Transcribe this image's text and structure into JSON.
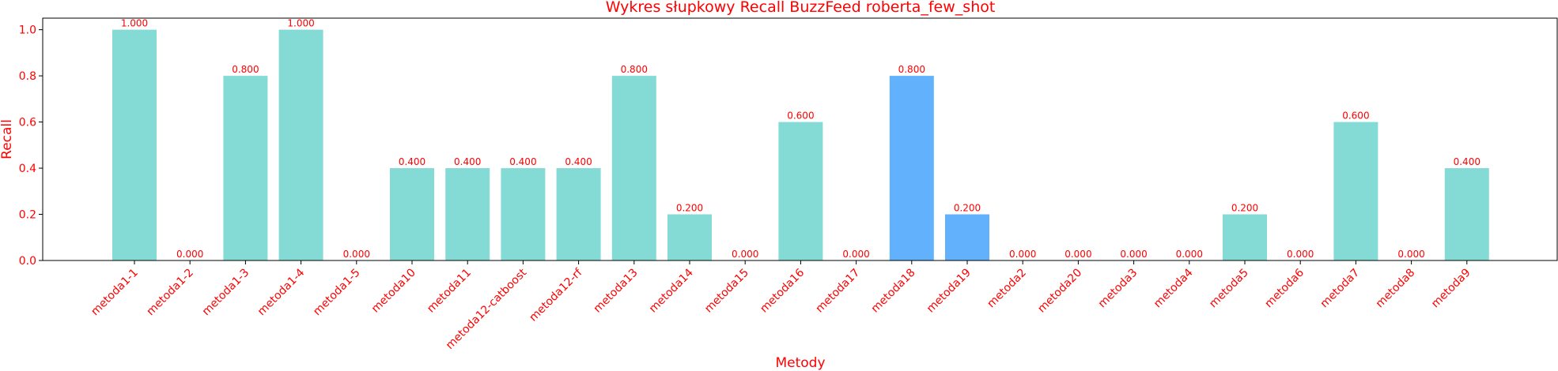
{
  "chart_data": {
    "type": "bar",
    "title": "Wykres słupkowy Recall BuzzFeed roberta_few_shot",
    "xlabel": "Metody",
    "ylabel": "Recall",
    "ylim": [
      0,
      1.05
    ],
    "yticks": [
      "0.0",
      "0.2",
      "0.4",
      "0.6",
      "0.8",
      "1.0"
    ],
    "categories": [
      "metoda1-1",
      "metoda1-2",
      "metoda1-3",
      "metoda1-4",
      "metoda1-5",
      "metoda10",
      "metoda11",
      "metoda12-catboost",
      "metoda12-rf",
      "metoda13",
      "metoda14",
      "metoda15",
      "metoda16",
      "metoda17",
      "metoda18",
      "metoda19",
      "metoda2",
      "metoda20",
      "metoda3",
      "metoda4",
      "metoda5",
      "metoda6",
      "metoda7",
      "metoda8",
      "metoda9"
    ],
    "values": [
      1.0,
      0.0,
      0.8,
      1.0,
      0.0,
      0.4,
      0.4,
      0.4,
      0.4,
      0.8,
      0.2,
      0.0,
      0.6,
      0.0,
      0.8,
      0.2,
      0.0,
      0.0,
      0.0,
      0.0,
      0.2,
      0.0,
      0.6,
      0.0,
      0.4
    ],
    "value_labels": [
      "1.000",
      "0.000",
      "0.800",
      "1.000",
      "0.000",
      "0.400",
      "0.400",
      "0.400",
      "0.400",
      "0.800",
      "0.200",
      "0.000",
      "0.600",
      "0.000",
      "0.800",
      "0.200",
      "0.000",
      "0.000",
      "0.000",
      "0.000",
      "0.200",
      "0.000",
      "0.600",
      "0.000",
      "0.400"
    ],
    "highlighted": [
      "metoda18",
      "metoda19"
    ],
    "colors": {
      "bar": "#84dbd5",
      "highlight": "#62b1fd",
      "text": "#ff0000",
      "axis": "#000000"
    }
  }
}
